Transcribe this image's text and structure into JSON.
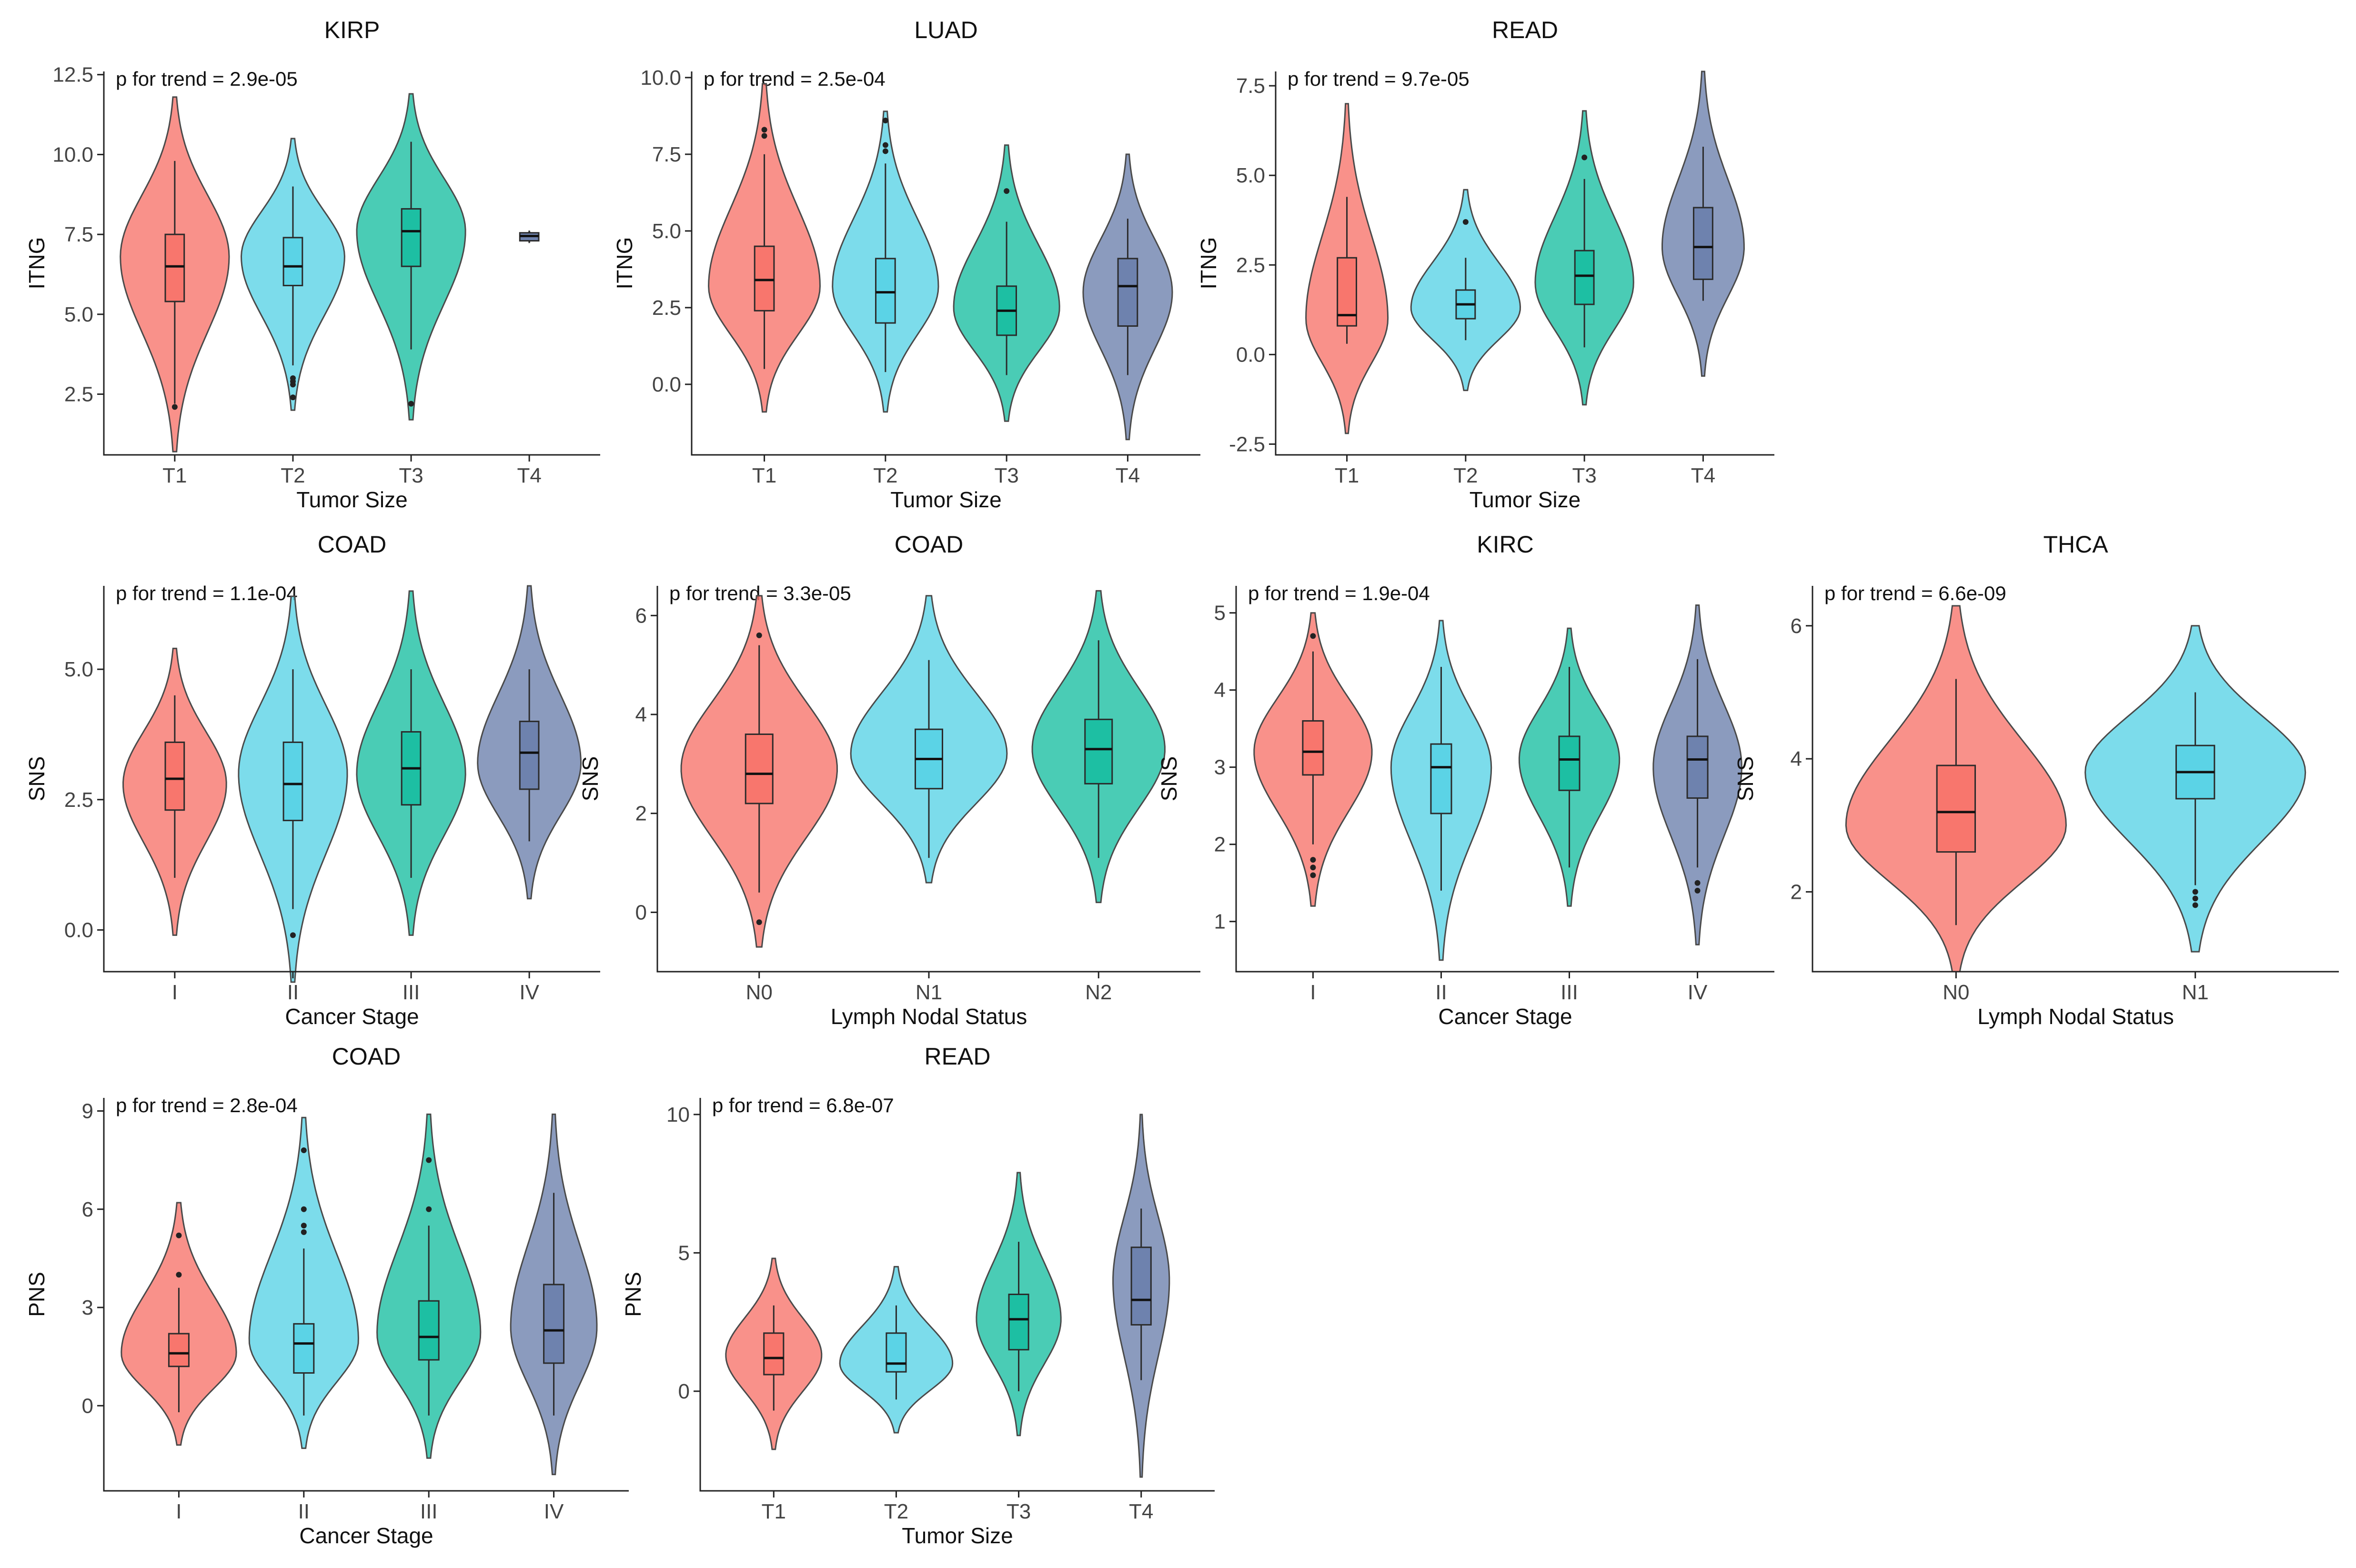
{
  "colors": {
    "group1": "#F8766D",
    "group2": "#5BD3E6",
    "group3": "#1DBFA3",
    "group4": "#6E82AE"
  },
  "chart_data": [
    {
      "type": "violin",
      "title": "KIRP",
      "ylabel": "ITNG",
      "xlabel": "Tumor Size",
      "p_trend": "p for trend = 2.9e-05",
      "ylim": [
        0.6,
        12.6
      ],
      "yticks": [
        2.5,
        5.0,
        7.5,
        10.0,
        12.5
      ],
      "ytick_labels": [
        "2.5",
        "5.0",
        "7.5",
        "10.0",
        "12.5"
      ],
      "categories": [
        "T1",
        "T2",
        "T3",
        "T4"
      ],
      "groups": [
        {
          "q1": 5.4,
          "median": 6.5,
          "q3": 7.5,
          "whisker_low": 2.2,
          "whisker_high": 9.8,
          "min": 0.7,
          "max": 11.8,
          "width": 1.0,
          "mode": 6.8,
          "outliers": [
            2.1
          ]
        },
        {
          "q1": 5.9,
          "median": 6.5,
          "q3": 7.4,
          "whisker_low": 3.4,
          "whisker_high": 9.0,
          "min": 2.0,
          "max": 10.5,
          "width": 0.95,
          "mode": 6.8,
          "outliers": [
            2.4,
            2.8,
            2.9,
            3.0
          ]
        },
        {
          "q1": 6.5,
          "median": 7.6,
          "q3": 8.3,
          "whisker_low": 3.9,
          "whisker_high": 10.4,
          "min": 1.7,
          "max": 11.9,
          "width": 1.0,
          "mode": 7.6,
          "outliers": [
            2.2
          ]
        },
        {
          "q1": 7.3,
          "median": 7.45,
          "q3": 7.55,
          "whisker_low": 7.25,
          "whisker_high": 7.6,
          "min": 7.25,
          "max": 7.6,
          "width": 0.05,
          "mode": 7.45,
          "outliers": []
        }
      ]
    },
    {
      "type": "violin",
      "title": "LUAD",
      "ylabel": "ITNG",
      "xlabel": "Tumor Size",
      "p_trend": "p for trend = 2.5e-04",
      "ylim": [
        -2.3,
        10.2
      ],
      "yticks": [
        0.0,
        2.5,
        5.0,
        7.5,
        10.0
      ],
      "ytick_labels": [
        "0.0",
        "2.5",
        "5.0",
        "7.5",
        "10.0"
      ],
      "categories": [
        "T1",
        "T2",
        "T3",
        "T4"
      ],
      "groups": [
        {
          "q1": 2.4,
          "median": 3.4,
          "q3": 4.5,
          "whisker_low": 0.5,
          "whisker_high": 7.5,
          "min": -0.9,
          "max": 9.8,
          "width": 1.0,
          "mode": 3.2,
          "outliers": [
            8.1,
            8.3
          ]
        },
        {
          "q1": 2.0,
          "median": 3.0,
          "q3": 4.1,
          "whisker_low": 0.4,
          "whisker_high": 7.2,
          "min": -0.9,
          "max": 8.9,
          "width": 0.95,
          "mode": 3.2,
          "outliers": [
            7.6,
            7.8,
            8.6
          ]
        },
        {
          "q1": 1.6,
          "median": 2.4,
          "q3": 3.2,
          "whisker_low": 0.3,
          "whisker_high": 5.3,
          "min": -1.2,
          "max": 7.8,
          "width": 0.95,
          "mode": 2.5,
          "outliers": [
            6.3
          ]
        },
        {
          "q1": 1.9,
          "median": 3.2,
          "q3": 4.1,
          "whisker_low": 0.3,
          "whisker_high": 5.4,
          "min": -1.8,
          "max": 7.5,
          "width": 0.8,
          "mode": 3.0,
          "outliers": []
        }
      ]
    },
    {
      "type": "violin",
      "title": "READ",
      "ylabel": "ITNG",
      "xlabel": "Tumor Size",
      "p_trend": "p for trend = 9.7e-05",
      "ylim": [
        -2.8,
        7.9
      ],
      "yticks": [
        -2.5,
        0.0,
        2.5,
        5.0,
        7.5
      ],
      "ytick_labels": [
        "-2.5",
        "0.0",
        "2.5",
        "5.0",
        "7.5"
      ],
      "categories": [
        "T1",
        "T2",
        "T3",
        "T4"
      ],
      "groups": [
        {
          "q1": 0.8,
          "median": 1.1,
          "q3": 2.7,
          "whisker_low": 0.3,
          "whisker_high": 4.4,
          "min": -2.2,
          "max": 7.0,
          "width": 0.75,
          "mode": 1.0,
          "outliers": []
        },
        {
          "q1": 1.0,
          "median": 1.4,
          "q3": 1.8,
          "whisker_low": 0.4,
          "whisker_high": 2.7,
          "min": -1.0,
          "max": 4.6,
          "width": 1.0,
          "mode": 1.3,
          "outliers": [
            3.7
          ]
        },
        {
          "q1": 1.4,
          "median": 2.2,
          "q3": 2.9,
          "whisker_low": 0.2,
          "whisker_high": 4.9,
          "min": -1.4,
          "max": 6.8,
          "width": 0.9,
          "mode": 2.0,
          "outliers": [
            5.5
          ]
        },
        {
          "q1": 2.1,
          "median": 3.0,
          "q3": 4.1,
          "whisker_low": 1.5,
          "whisker_high": 5.8,
          "min": -0.6,
          "max": 7.9,
          "width": 0.75,
          "mode": 3.0,
          "outliers": []
        }
      ]
    },
    {
      "type": "violin",
      "title": "COAD",
      "ylabel": "SNS",
      "xlabel": "Cancer Stage",
      "p_trend": "p for trend = 1.1e-04",
      "ylim": [
        -0.8,
        6.6
      ],
      "yticks": [
        0.0,
        2.5,
        5.0
      ],
      "ytick_labels": [
        "0.0",
        "2.5",
        "5.0"
      ],
      "categories": [
        "I",
        "II",
        "III",
        "IV"
      ],
      "groups": [
        {
          "q1": 2.3,
          "median": 2.9,
          "q3": 3.6,
          "whisker_low": 1.0,
          "whisker_high": 4.5,
          "min": -0.1,
          "max": 5.4,
          "width": 0.95,
          "mode": 2.8,
          "outliers": []
        },
        {
          "q1": 2.1,
          "median": 2.8,
          "q3": 3.6,
          "whisker_low": 0.4,
          "whisker_high": 5.0,
          "min": -1.0,
          "max": 6.4,
          "width": 1.0,
          "mode": 3.0,
          "outliers": [
            -0.1
          ]
        },
        {
          "q1": 2.4,
          "median": 3.1,
          "q3": 3.8,
          "whisker_low": 1.0,
          "whisker_high": 5.0,
          "min": -0.1,
          "max": 6.5,
          "width": 1.0,
          "mode": 3.0,
          "outliers": []
        },
        {
          "q1": 2.7,
          "median": 3.4,
          "q3": 4.0,
          "whisker_low": 1.7,
          "whisker_high": 5.0,
          "min": 0.6,
          "max": 6.6,
          "width": 0.95,
          "mode": 3.2,
          "outliers": []
        }
      ]
    },
    {
      "type": "violin",
      "title": "COAD",
      "ylabel": "SNS",
      "xlabel": "Lymph Nodal Status",
      "p_trend": "p for trend = 3.3e-05",
      "ylim": [
        -1.2,
        6.6
      ],
      "yticks": [
        0,
        2,
        4,
        6
      ],
      "ytick_labels": [
        "0",
        "2",
        "4",
        "6"
      ],
      "categories": [
        "N0",
        "N1",
        "N2"
      ],
      "groups": [
        {
          "q1": 2.2,
          "median": 2.8,
          "q3": 3.6,
          "whisker_low": 0.4,
          "whisker_high": 5.4,
          "min": -0.7,
          "max": 6.4,
          "width": 1.0,
          "mode": 2.9,
          "outliers": [
            -0.2,
            5.6
          ]
        },
        {
          "q1": 2.5,
          "median": 3.1,
          "q3": 3.7,
          "whisker_low": 1.1,
          "whisker_high": 5.1,
          "min": 0.6,
          "max": 6.4,
          "width": 1.0,
          "mode": 3.2,
          "outliers": []
        },
        {
          "q1": 2.6,
          "median": 3.3,
          "q3": 3.9,
          "whisker_low": 1.1,
          "whisker_high": 5.5,
          "min": 0.2,
          "max": 6.5,
          "width": 0.85,
          "mode": 3.3,
          "outliers": []
        }
      ]
    },
    {
      "type": "violin",
      "title": "KIRC",
      "ylabel": "SNS",
      "xlabel": "Cancer Stage",
      "p_trend": "p for trend = 1.9e-04",
      "ylim": [
        0.35,
        5.35
      ],
      "yticks": [
        1,
        2,
        3,
        4,
        5
      ],
      "ytick_labels": [
        "1",
        "2",
        "3",
        "4",
        "5"
      ],
      "categories": [
        "I",
        "II",
        "III",
        "IV"
      ],
      "groups": [
        {
          "q1": 2.9,
          "median": 3.2,
          "q3": 3.6,
          "whisker_low": 2.0,
          "whisker_high": 4.5,
          "min": 1.2,
          "max": 5.0,
          "width": 1.0,
          "mode": 3.2,
          "outliers": [
            1.6,
            1.7,
            1.8,
            4.7
          ]
        },
        {
          "q1": 2.4,
          "median": 3.0,
          "q3": 3.3,
          "whisker_low": 1.4,
          "whisker_high": 4.3,
          "min": 0.5,
          "max": 4.9,
          "width": 0.85,
          "mode": 3.0,
          "outliers": []
        },
        {
          "q1": 2.7,
          "median": 3.1,
          "q3": 3.4,
          "whisker_low": 1.7,
          "whisker_high": 4.3,
          "min": 1.2,
          "max": 4.8,
          "width": 0.85,
          "mode": 3.1,
          "outliers": []
        },
        {
          "q1": 2.6,
          "median": 3.1,
          "q3": 3.4,
          "whisker_low": 1.7,
          "whisker_high": 4.4,
          "min": 0.7,
          "max": 5.1,
          "width": 0.75,
          "mode": 3.0,
          "outliers": [
            1.4,
            1.5
          ]
        }
      ]
    },
    {
      "type": "violin",
      "title": "THCA",
      "ylabel": "SNS",
      "xlabel": "Lymph Nodal Status",
      "p_trend": "p for trend = 6.6e-09",
      "ylim": [
        0.8,
        6.6
      ],
      "yticks": [
        2,
        4,
        6
      ],
      "ytick_labels": [
        "2",
        "4",
        "6"
      ],
      "categories": [
        "N0",
        "N1"
      ],
      "groups": [
        {
          "q1": 2.6,
          "median": 3.2,
          "q3": 3.9,
          "whisker_low": 1.5,
          "whisker_high": 5.2,
          "min": 0.8,
          "max": 6.3,
          "width": 1.0,
          "mode": 3.0,
          "outliers": []
        },
        {
          "q1": 3.4,
          "median": 3.8,
          "q3": 4.2,
          "whisker_low": 2.1,
          "whisker_high": 5.0,
          "min": 1.1,
          "max": 6.0,
          "width": 1.0,
          "mode": 3.8,
          "outliers": [
            1.8,
            1.9,
            2.0
          ]
        }
      ]
    },
    {
      "type": "violin",
      "title": "COAD",
      "ylabel": "PNS",
      "xlabel": "Cancer Stage",
      "p_trend": "p for trend = 2.8e-04",
      "ylim": [
        -2.6,
        9.4
      ],
      "yticks": [
        0,
        3,
        6,
        9
      ],
      "ytick_labels": [
        "0",
        "3",
        "6",
        "9"
      ],
      "categories": [
        "I",
        "II",
        "III",
        "IV"
      ],
      "groups": [
        {
          "q1": 1.2,
          "median": 1.6,
          "q3": 2.2,
          "whisker_low": -0.2,
          "whisker_high": 3.6,
          "min": -1.2,
          "max": 6.2,
          "width": 1.0,
          "mode": 1.6,
          "outliers": [
            4.0,
            5.2
          ]
        },
        {
          "q1": 1.0,
          "median": 1.9,
          "q3": 2.5,
          "whisker_low": -0.3,
          "whisker_high": 4.8,
          "min": -1.3,
          "max": 8.8,
          "width": 0.95,
          "mode": 2.0,
          "outliers": [
            5.3,
            5.5,
            6.0,
            7.8
          ]
        },
        {
          "q1": 1.4,
          "median": 2.1,
          "q3": 3.2,
          "whisker_low": -0.3,
          "whisker_high": 5.5,
          "min": -1.6,
          "max": 8.9,
          "width": 0.9,
          "mode": 2.2,
          "outliers": [
            6.0,
            7.5
          ]
        },
        {
          "q1": 1.3,
          "median": 2.3,
          "q3": 3.7,
          "whisker_low": -0.3,
          "whisker_high": 6.5,
          "min": -2.1,
          "max": 8.9,
          "width": 0.75,
          "mode": 2.4,
          "outliers": []
        }
      ]
    },
    {
      "type": "violin",
      "title": "READ",
      "ylabel": "PNS",
      "xlabel": "Tumor Size",
      "p_trend": "p for trend = 6.8e-07",
      "ylim": [
        -3.6,
        10.6
      ],
      "yticks": [
        0,
        5,
        10
      ],
      "ytick_labels": [
        "0",
        "5",
        "10"
      ],
      "categories": [
        "T1",
        "T2",
        "T3",
        "T4"
      ],
      "groups": [
        {
          "q1": 0.6,
          "median": 1.2,
          "q3": 2.1,
          "whisker_low": -0.7,
          "whisker_high": 3.1,
          "min": -2.1,
          "max": 4.8,
          "width": 0.85,
          "mode": 1.3,
          "outliers": []
        },
        {
          "q1": 0.7,
          "median": 1.0,
          "q3": 2.1,
          "whisker_low": -0.3,
          "whisker_high": 3.1,
          "min": -1.5,
          "max": 4.5,
          "width": 1.0,
          "mode": 1.0,
          "outliers": []
        },
        {
          "q1": 1.5,
          "median": 2.6,
          "q3": 3.5,
          "whisker_low": 0.0,
          "whisker_high": 5.4,
          "min": -1.6,
          "max": 7.9,
          "width": 0.75,
          "mode": 2.6,
          "outliers": []
        },
        {
          "q1": 2.4,
          "median": 3.3,
          "q3": 5.2,
          "whisker_low": 0.4,
          "whisker_high": 6.6,
          "min": -3.1,
          "max": 10.0,
          "width": 0.5,
          "mode": 4.0,
          "outliers": []
        }
      ]
    }
  ]
}
